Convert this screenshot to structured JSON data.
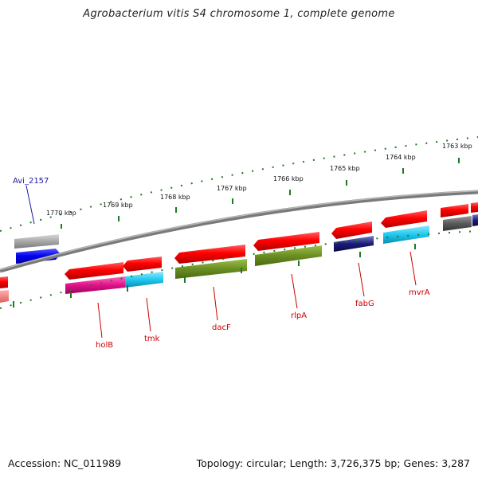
{
  "title": "Agrobacterium vitis S4 chromosome 1, complete genome",
  "accession": "Accession: NC_011989",
  "summary": "Topology: circular; Length: 3,726,375 bp; Genes: 3,287",
  "kbp_labels": [
    "1770 kbp",
    "1769 kbp",
    "1768 kbp",
    "1767 kbp",
    "1766 kbp",
    "1765 kbp",
    "1764 kbp",
    "1763 kbp"
  ],
  "genes_outer": [
    {
      "name": "Avi_2157",
      "color": "#1a1aa6"
    }
  ],
  "genes_inner": [
    {
      "name": "holB",
      "color": "#cc0000"
    },
    {
      "name": "tmk",
      "color": "#cc0000"
    },
    {
      "name": "dacF",
      "color": "#cc0000"
    },
    {
      "name": "rlpA",
      "color": "#cc0000"
    },
    {
      "name": "fabG",
      "color": "#cc0000"
    },
    {
      "name": "mvrA",
      "color": "#cc0000"
    }
  ],
  "colors": {
    "backbone": "#808080",
    "tick": "#1f7a1f",
    "cds": "#ee0000",
    "pink": "#e0118a",
    "cyan": "#1fc8f0",
    "olive": "#6b8e23",
    "navy": "#1b1b7a",
    "blue": "#0000ee",
    "gray": "#9a9a9a",
    "darkgray": "#5a5a5a"
  }
}
